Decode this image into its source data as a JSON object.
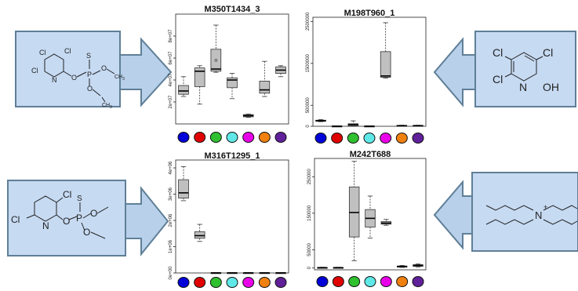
{
  "colors": {
    "box_fill": "#c0c0c0",
    "panel_fill": "#c6daf2",
    "panel_stroke": "#5f7f97",
    "arrow_fill": "#b8d0ea",
    "group_colors": [
      "#0000d8",
      "#e00000",
      "#30c030",
      "#60e8e8",
      "#e800e8",
      "#f08010",
      "#60209a"
    ]
  },
  "molecules": {
    "chlorpyrifos": {
      "atoms": [
        "Cl",
        "Cl",
        "Cl",
        "N",
        "O",
        "P",
        "S",
        "O",
        "O"
      ],
      "tail": "CH",
      "tail_sub": "3"
    },
    "trichloropyridinol": {
      "atoms": [
        "Cl",
        "Cl",
        "Cl",
        "N",
        "OH"
      ]
    },
    "chlorpyrifos_methyl_like": {
      "atoms": [
        "Cl",
        "Cl",
        "N",
        "O",
        "P",
        "S",
        "O",
        "O"
      ]
    },
    "tetrabutylammonium": {
      "atoms": [
        "N",
        "+"
      ]
    }
  },
  "chart_data": [
    {
      "type": "box",
      "title": "M350T1434_3",
      "ylim": [
        0,
        100000000
      ],
      "y_ticks": [
        20000000,
        40000000,
        60000000,
        80000000
      ],
      "y_tick_labels": [
        "2e+07",
        "4e+07",
        "6e+07",
        "8e+07"
      ],
      "groups": [
        {
          "min": 25000000,
          "q1": 27000000,
          "median": 30000000,
          "q3": 35000000,
          "max": 43000000,
          "outliers": []
        },
        {
          "min": 18000000,
          "q1": 34000000,
          "median": 48000000,
          "q3": 51000000,
          "max": 53000000,
          "outliers": []
        },
        {
          "min": 47000000,
          "q1": 48000000,
          "median": 50000000,
          "q3": 68000000,
          "max": 90000000,
          "outliers": [
            58000000
          ]
        },
        {
          "min": 23000000,
          "q1": 33000000,
          "median": 40000000,
          "q3": 42000000,
          "max": 46000000,
          "outliers": []
        },
        {
          "min": 6000000,
          "q1": 6500000,
          "median": 7500000,
          "q3": 8500000,
          "max": 9000000,
          "outliers": []
        },
        {
          "min": 25000000,
          "q1": 28000000,
          "median": 31000000,
          "q3": 39000000,
          "max": 57000000,
          "outliers": []
        },
        {
          "min": 43000000,
          "q1": 46000000,
          "median": 49000000,
          "q3": 52000000,
          "max": 53000000,
          "outliers": []
        }
      ]
    },
    {
      "type": "box",
      "title": "M198T960_1",
      "ylim": [
        0,
        2600000
      ],
      "y_ticks": [
        0,
        500000,
        1500000,
        2500000
      ],
      "y_tick_labels": [
        "0",
        "500000",
        "1500000",
        "2500000"
      ],
      "groups": [
        {
          "min": 110000,
          "q1": 120000,
          "median": 130000,
          "q3": 145000,
          "max": 160000,
          "outliers": []
        },
        {
          "min": 0,
          "q1": 2000,
          "median": 4000,
          "q3": 6000,
          "max": 10000,
          "outliers": []
        },
        {
          "min": 0,
          "q1": 15000,
          "median": 40000,
          "q3": 60000,
          "max": 130000,
          "outliers": []
        },
        {
          "min": 0,
          "q1": 2000,
          "median": 4000,
          "q3": 6000,
          "max": 10000,
          "outliers": []
        },
        {
          "min": 1150000,
          "q1": 1170000,
          "median": 1200000,
          "q3": 1780000,
          "max": 2470000,
          "outliers": []
        },
        {
          "min": 5000,
          "q1": 10000,
          "median": 15000,
          "q3": 20000,
          "max": 25000,
          "outliers": []
        },
        {
          "min": 5000,
          "q1": 10000,
          "median": 15000,
          "q3": 20000,
          "max": 25000,
          "outliers": []
        }
      ]
    },
    {
      "type": "box",
      "title": "M316T1295_1",
      "ylim": [
        0,
        4300000
      ],
      "y_ticks": [
        0,
        1000000,
        2000000,
        3000000,
        4000000
      ],
      "y_tick_labels": [
        "0e+00",
        "1e+06",
        "2e+06",
        "3e+06",
        "4e+06"
      ],
      "groups": [
        {
          "min": 2750000,
          "q1": 2850000,
          "median": 3050000,
          "q3": 3550000,
          "max": 4050000,
          "outliers": []
        },
        {
          "min": 1200000,
          "q1": 1320000,
          "median": 1420000,
          "q3": 1570000,
          "max": 1850000,
          "outliers": []
        },
        {
          "min": 0,
          "q1": 0,
          "median": 5000,
          "q3": 10000,
          "max": 12000,
          "outliers": []
        },
        {
          "min": 0,
          "q1": 0,
          "median": 5000,
          "q3": 10000,
          "max": 12000,
          "outliers": []
        },
        {
          "min": 0,
          "q1": 0,
          "median": 5000,
          "q3": 10000,
          "max": 12000,
          "outliers": []
        },
        {
          "min": 0,
          "q1": 0,
          "median": 5000,
          "q3": 10000,
          "max": 12000,
          "outliers": []
        },
        {
          "min": 0,
          "q1": 0,
          "median": 5000,
          "q3": 10000,
          "max": 12000,
          "outliers": []
        }
      ]
    },
    {
      "type": "box",
      "title": "M242T688",
      "ylim": [
        -5000,
        300000
      ],
      "y_ticks": [
        0,
        50000,
        150000,
        250000
      ],
      "y_tick_labels": [
        "0",
        "50000",
        "150000",
        "250000"
      ],
      "groups": [
        {
          "min": 0,
          "q1": 500,
          "median": 1000,
          "q3": 1500,
          "max": 2000,
          "outliers": []
        },
        {
          "min": 0,
          "q1": 500,
          "median": 1000,
          "q3": 1500,
          "max": 2000,
          "outliers": []
        },
        {
          "min": 20000,
          "q1": 85000,
          "median": 152000,
          "q3": 222000,
          "max": 292000,
          "outliers": []
        },
        {
          "min": 82000,
          "q1": 112000,
          "median": 136000,
          "q3": 160000,
          "max": 197000,
          "outliers": []
        },
        {
          "min": 117000,
          "q1": 120000,
          "median": 123000,
          "q3": 127000,
          "max": 133000,
          "outliers": []
        },
        {
          "min": 1500,
          "q1": 2500,
          "median": 4000,
          "q3": 5500,
          "max": 7000,
          "outliers": []
        },
        {
          "min": 3000,
          "q1": 4500,
          "median": 7000,
          "q3": 9000,
          "max": 11000,
          "outliers": []
        }
      ]
    }
  ]
}
